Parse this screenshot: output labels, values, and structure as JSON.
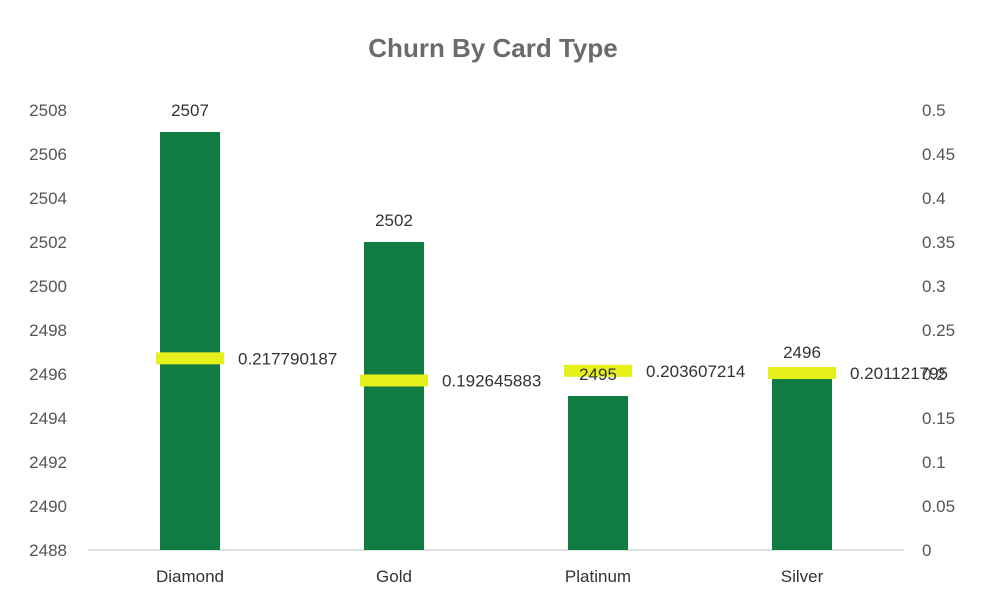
{
  "chart_data": {
    "type": "bar",
    "title": "Churn By Card Type",
    "categories": [
      "Diamond",
      "Gold",
      "Platinum",
      "Silver"
    ],
    "series": [
      {
        "axis": "primary",
        "kind": "bar",
        "values": [
          2507,
          2502,
          2495,
          2496
        ],
        "color": "#107c41"
      },
      {
        "axis": "secondary",
        "kind": "marker",
        "values": [
          0.217790187,
          0.192645883,
          0.203607214,
          0.201121795
        ],
        "color": "#e6f01a"
      }
    ],
    "bar_labels": [
      "2507",
      "2502",
      "2495",
      "2496"
    ],
    "marker_labels": [
      "0.217790187",
      "0.192645883",
      "0.203607214",
      "0.201121795"
    ],
    "y_left": {
      "min": 2488,
      "max": 2508,
      "step": 2,
      "ticks": [
        "2488",
        "2490",
        "2492",
        "2494",
        "2496",
        "2498",
        "2500",
        "2502",
        "2504",
        "2506",
        "2508"
      ]
    },
    "y_right": {
      "min": 0,
      "max": 0.5,
      "step": 0.05,
      "ticks": [
        "0",
        "0.05",
        "0.1",
        "0.15",
        "0.2",
        "0.25",
        "0.3",
        "0.35",
        "0.4",
        "0.45",
        "0.5"
      ]
    },
    "grid": false,
    "legend": "none"
  }
}
